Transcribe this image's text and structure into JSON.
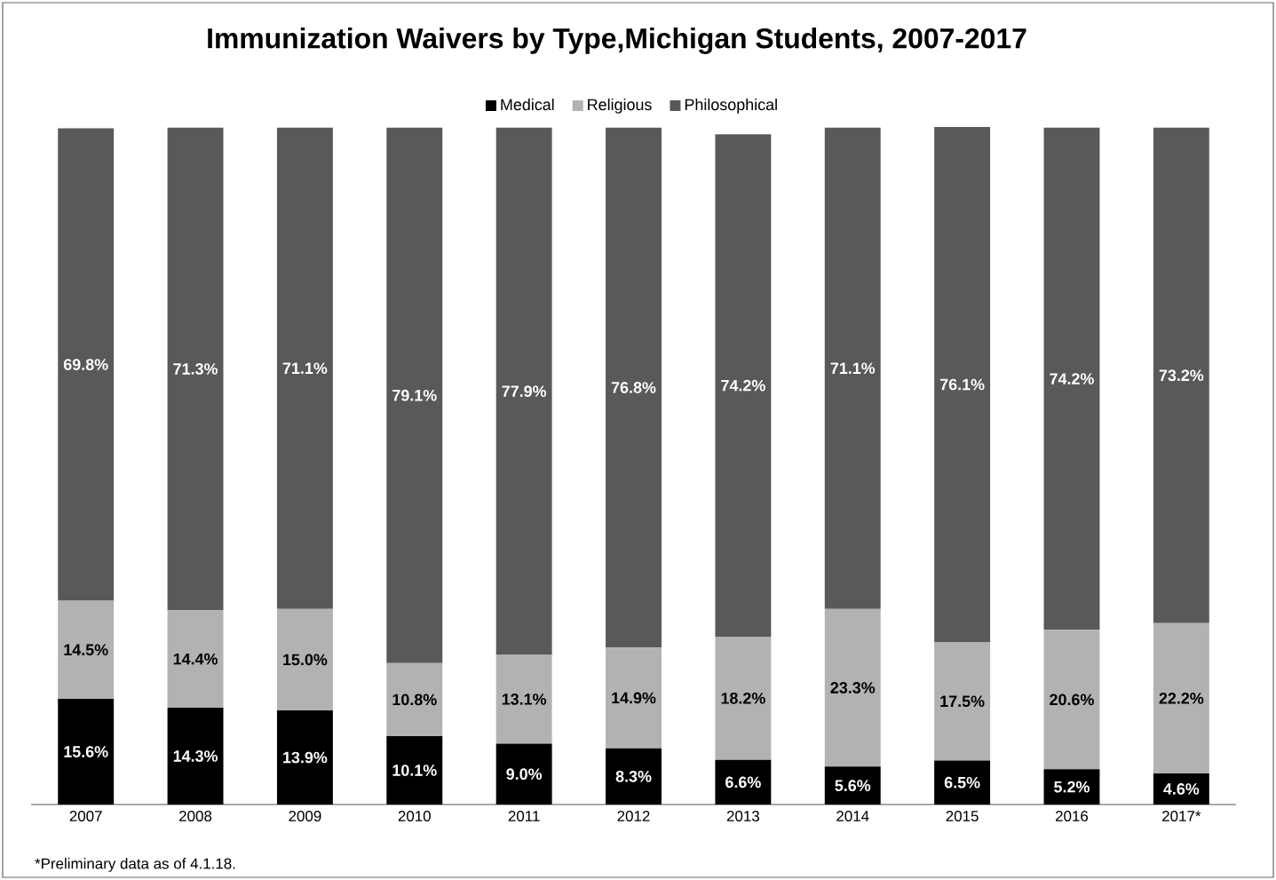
{
  "chart_data": {
    "type": "bar",
    "stacked": true,
    "title": "Immunization Waivers by Type,Michigan Students, 2007-2017",
    "categories": [
      "2007",
      "2008",
      "2009",
      "2010",
      "2011",
      "2012",
      "2013",
      "2014",
      "2015",
      "2016",
      "2017*"
    ],
    "series": [
      {
        "name": "Medical",
        "color": "#000000",
        "values": [
          15.6,
          14.3,
          13.9,
          10.1,
          9.0,
          8.3,
          6.6,
          5.6,
          6.5,
          5.2,
          4.6
        ],
        "value_labels": [
          "15.6%",
          "14.3%",
          "13.9%",
          "10.1%",
          "9.0%",
          "8.3%",
          "6.6%",
          "5.6%",
          "6.5%",
          "5.2%",
          "4.6%"
        ]
      },
      {
        "name": "Religious",
        "color": "#b2b2b2",
        "values": [
          14.5,
          14.4,
          15.0,
          10.8,
          13.1,
          14.9,
          18.2,
          23.3,
          17.5,
          20.6,
          22.2
        ],
        "value_labels": [
          "14.5%",
          "14.4%",
          "15.0%",
          "10.8%",
          "13.1%",
          "14.9%",
          "18.2%",
          "23.3%",
          "17.5%",
          "20.6%",
          "22.2%"
        ]
      },
      {
        "name": "Philosophical",
        "color": "#595959",
        "values": [
          69.8,
          71.3,
          71.1,
          79.1,
          77.9,
          76.8,
          74.2,
          71.1,
          76.1,
          74.2,
          73.2
        ],
        "value_labels": [
          "69.8%",
          "71.3%",
          "71.1%",
          "79.1%",
          "77.9%",
          "76.8%",
          "74.2%",
          "71.1%",
          "76.1%",
          "74.2%",
          "73.2%"
        ]
      }
    ],
    "legend": "top",
    "tick_labels": "x",
    "annotations": [
      "*Preliminary data as of 4.1.18."
    ]
  }
}
